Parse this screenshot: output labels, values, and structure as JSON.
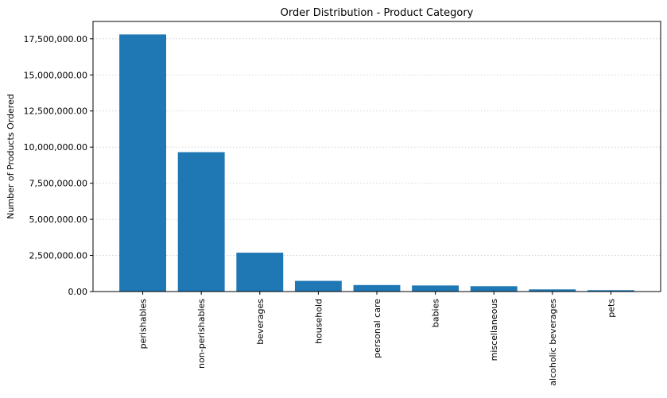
{
  "chart_data": {
    "type": "bar",
    "title": "Order Distribution - Product Category",
    "xlabel": "",
    "ylabel": "Number of Products Ordered",
    "categories": [
      "perishables",
      "non-perishables",
      "beverages",
      "household",
      "personal care",
      "babies",
      "miscellaneous",
      "alcoholic beverages",
      "pets"
    ],
    "values": [
      17800000,
      9650000,
      2690000,
      740000,
      450000,
      420000,
      370000,
      150000,
      95000
    ],
    "ylim": [
      0,
      18700000
    ],
    "yticks": [
      0,
      2500000,
      5000000,
      7500000,
      10000000,
      12500000,
      15000000,
      17500000
    ],
    "ytick_labels": [
      "0.00",
      "2,500,000.00",
      "5,000,000.00",
      "7,500,000.00",
      "10,000,000.00",
      "12,500,000.00",
      "15,000,000.00",
      "17,500,000.00"
    ],
    "bar_color": "#1f77b4",
    "grid": "horizontal-dotted",
    "legend": "none"
  }
}
